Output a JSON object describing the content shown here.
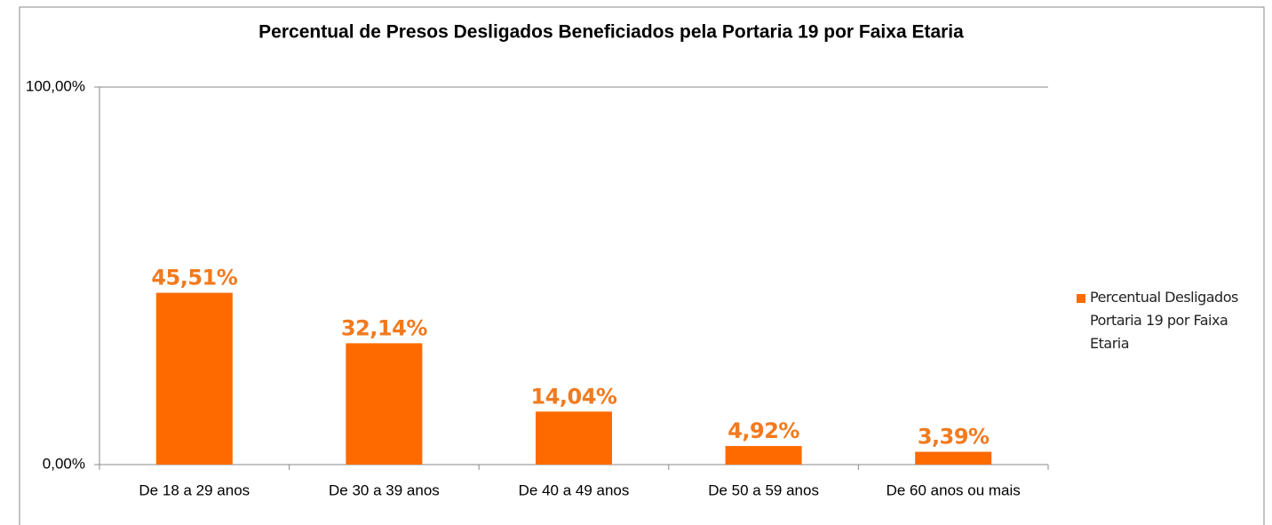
{
  "chart_data": {
    "type": "bar",
    "title": "Percentual de Presos Desligados Beneficiados pela Portaria 19 por Faixa Etaria",
    "categories": [
      "De 18 a 29 anos",
      "De 30 a 39 anos",
      "De 40 a 49 anos",
      "De 50 a 59 anos",
      "De 60 anos ou mais"
    ],
    "series": [
      {
        "name": "Percentual Desligados Portaria 19 por Faixa Etaria",
        "color": "#ff6a00",
        "values": [
          45.51,
          32.14,
          14.04,
          4.92,
          3.39
        ],
        "value_labels": [
          "45,51%",
          "32,14%",
          "14,04%",
          "4,92%",
          "3,39%"
        ]
      }
    ],
    "ylim": [
      0,
      100
    ],
    "yticks": [
      {
        "value": 0,
        "label": "0,00%"
      },
      {
        "value": 100,
        "label": "100,00%"
      }
    ],
    "grid": true,
    "legend": "right"
  }
}
